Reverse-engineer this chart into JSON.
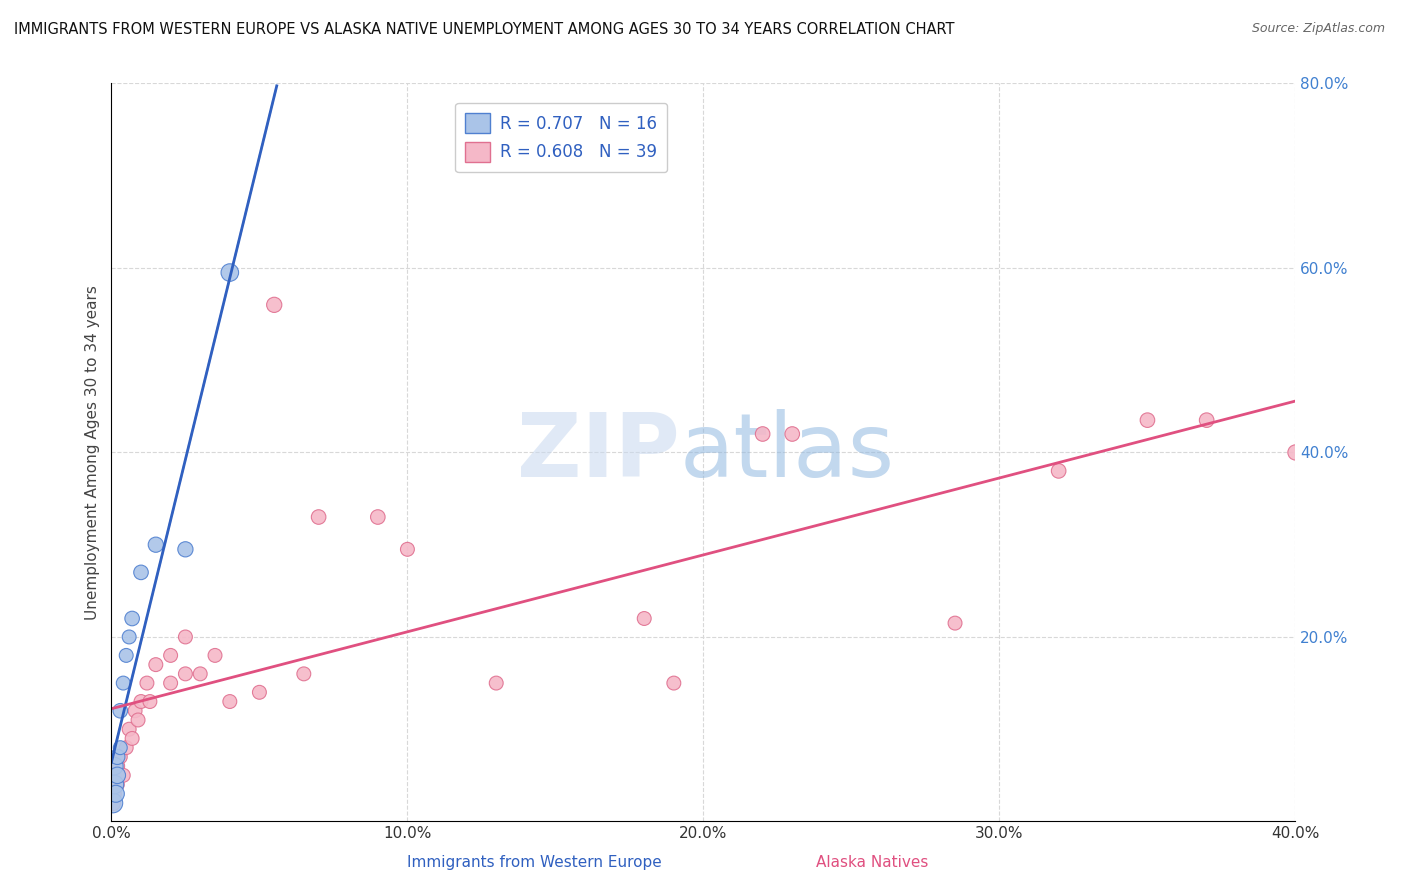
{
  "title": "IMMIGRANTS FROM WESTERN EUROPE VS ALASKA NATIVE UNEMPLOYMENT AMONG AGES 30 TO 34 YEARS CORRELATION CHART",
  "source": "Source: ZipAtlas.com",
  "xlabel_blue": "Immigrants from Western Europe",
  "xlabel_pink": "Alaska Natives",
  "ylabel": "Unemployment Among Ages 30 to 34 years",
  "blue_r": 0.707,
  "blue_n": 16,
  "pink_r": 0.608,
  "pink_n": 39,
  "xmin": 0.0,
  "xmax": 0.4,
  "ymin": 0.0,
  "ymax": 0.8,
  "blue_scatter_x": [
    0.0005,
    0.001,
    0.001,
    0.0015,
    0.002,
    0.002,
    0.003,
    0.003,
    0.004,
    0.005,
    0.006,
    0.007,
    0.01,
    0.015,
    0.025,
    0.04
  ],
  "blue_scatter_y": [
    0.02,
    0.04,
    0.06,
    0.03,
    0.05,
    0.07,
    0.08,
    0.12,
    0.15,
    0.18,
    0.2,
    0.22,
    0.27,
    0.3,
    0.295,
    0.595
  ],
  "blue_sizes": [
    200,
    180,
    160,
    150,
    140,
    120,
    100,
    110,
    100,
    100,
    100,
    110,
    110,
    120,
    120,
    160
  ],
  "pink_scatter_x": [
    0.0005,
    0.001,
    0.001,
    0.002,
    0.002,
    0.003,
    0.004,
    0.005,
    0.006,
    0.007,
    0.008,
    0.009,
    0.01,
    0.012,
    0.013,
    0.015,
    0.02,
    0.02,
    0.025,
    0.025,
    0.03,
    0.035,
    0.04,
    0.05,
    0.055,
    0.065,
    0.07,
    0.09,
    0.1,
    0.13,
    0.18,
    0.19,
    0.22,
    0.23,
    0.285,
    0.32,
    0.35,
    0.37,
    0.4
  ],
  "pink_scatter_y": [
    0.02,
    0.03,
    0.05,
    0.04,
    0.06,
    0.07,
    0.05,
    0.08,
    0.1,
    0.09,
    0.12,
    0.11,
    0.13,
    0.15,
    0.13,
    0.17,
    0.15,
    0.18,
    0.16,
    0.2,
    0.16,
    0.18,
    0.13,
    0.14,
    0.56,
    0.16,
    0.33,
    0.33,
    0.295,
    0.15,
    0.22,
    0.15,
    0.42,
    0.42,
    0.215,
    0.38,
    0.435,
    0.435,
    0.4
  ],
  "pink_sizes": [
    120,
    100,
    110,
    100,
    110,
    100,
    100,
    100,
    100,
    100,
    100,
    100,
    100,
    100,
    100,
    100,
    100,
    100,
    100,
    100,
    100,
    100,
    100,
    100,
    120,
    100,
    110,
    110,
    100,
    100,
    100,
    100,
    110,
    110,
    100,
    110,
    110,
    110,
    120
  ],
  "blue_color": "#aac4e8",
  "pink_color": "#f5b8c8",
  "blue_scatter_edge": "#5080d0",
  "pink_scatter_edge": "#e07090",
  "blue_line_color": "#3060c0",
  "pink_line_color": "#e05080",
  "trendline_dashed_color": "#b0bce8",
  "grid_color": "#d8d8d8",
  "ytick_color": "#4080d0",
  "xtick_color": "#333333",
  "xtick_labels": [
    "0.0%",
    "",
    "10.0%",
    "",
    "20.0%",
    "",
    "30.0%",
    "",
    "40.0%"
  ],
  "xtick_vals": [
    0.0,
    0.05,
    0.1,
    0.15,
    0.2,
    0.25,
    0.3,
    0.35,
    0.4
  ],
  "ytick_labels": [
    "20.0%",
    "40.0%",
    "60.0%",
    "80.0%"
  ],
  "ytick_vals": [
    0.2,
    0.4,
    0.6,
    0.8
  ],
  "blue_trendline_x0": 0.0,
  "blue_trendline_x1": 0.065,
  "pink_trendline_x0": 0.0,
  "pink_trendline_x1": 0.4
}
